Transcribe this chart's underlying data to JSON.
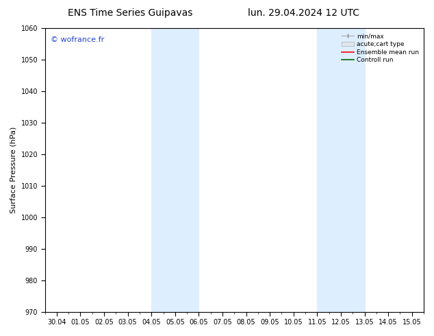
{
  "title_left": "ENS Time Series Guipavas",
  "title_right": "lun. 29.04.2024 12 UTC",
  "ylabel": "Surface Pressure (hPa)",
  "ylim": [
    970,
    1060
  ],
  "yticks": [
    970,
    980,
    990,
    1000,
    1010,
    1020,
    1030,
    1040,
    1050,
    1060
  ],
  "xlim_start": -0.5,
  "xlim_end": 15.5,
  "xtick_labels": [
    "30.04",
    "01.05",
    "02.05",
    "03.05",
    "04.05",
    "05.05",
    "06.05",
    "07.05",
    "08.05",
    "09.05",
    "10.05",
    "11.05",
    "12.05",
    "13.05",
    "14.05",
    "15.05"
  ],
  "xtick_positions": [
    0,
    1,
    2,
    3,
    4,
    5,
    6,
    7,
    8,
    9,
    10,
    11,
    12,
    13,
    14,
    15
  ],
  "shaded_regions": [
    {
      "xmin": 4.0,
      "xmax": 6.0,
      "color": "#ddeeff"
    },
    {
      "xmin": 11.0,
      "xmax": 13.0,
      "color": "#ddeeff"
    }
  ],
  "watermark": "© wofrance.fr",
  "watermark_color": "#2244cc",
  "background_color": "#ffffff",
  "plot_bg_color": "#ffffff",
  "title_fontsize": 10,
  "tick_fontsize": 7,
  "ylabel_fontsize": 8,
  "legend_fontsize": 6.5
}
